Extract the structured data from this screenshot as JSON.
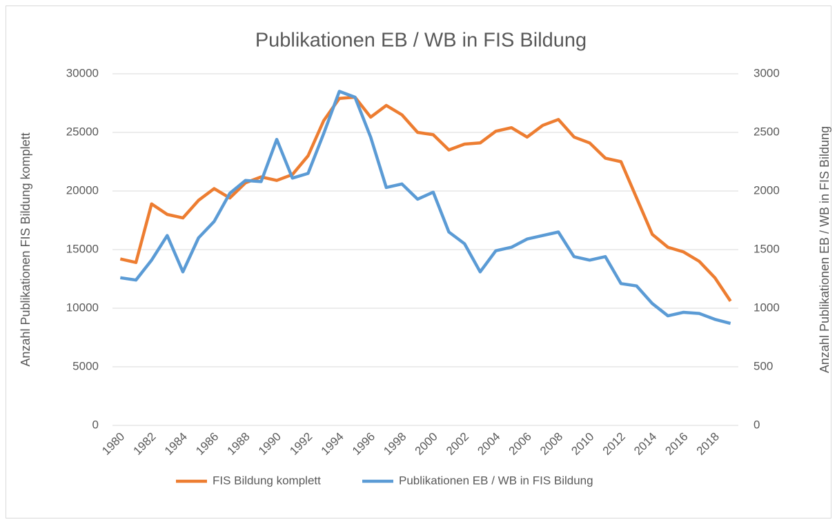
{
  "chart_data": {
    "type": "line",
    "title": "Publikationen EB / WB in FIS Bildung",
    "y_label": "Anzahl Publikationen FIS Bildung komplett",
    "y2_label": "Anzahl Publikationen EB / WB in FIS Bildung",
    "x": [
      1980,
      1981,
      1982,
      1983,
      1984,
      1985,
      1986,
      1987,
      1988,
      1989,
      1990,
      1991,
      1992,
      1993,
      1994,
      1995,
      1996,
      1997,
      1998,
      1999,
      2000,
      2001,
      2002,
      2003,
      2004,
      2005,
      2006,
      2007,
      2008,
      2009,
      2010,
      2011,
      2012,
      2013,
      2014,
      2015,
      2016,
      2017,
      2018,
      2019
    ],
    "xlim": [
      1979.5,
      2019.5
    ],
    "xticks": [
      1980,
      1982,
      1984,
      1986,
      1988,
      1990,
      1992,
      1994,
      1996,
      1998,
      2000,
      2002,
      2004,
      2006,
      2008,
      2010,
      2012,
      2014,
      2016,
      2018
    ],
    "ylim": [
      0,
      30000
    ],
    "yticks": [
      0,
      5000,
      10000,
      15000,
      20000,
      25000,
      30000
    ],
    "y2lim": [
      0,
      3000
    ],
    "y2ticks": [
      0,
      500,
      1000,
      1500,
      2000,
      2500,
      3000
    ],
    "grid": true,
    "legend": "bottom",
    "series": [
      {
        "name": "FIS Bildung komplett",
        "color": "#ed7d31",
        "values": [
          14200,
          13900,
          18900,
          18000,
          17700,
          19200,
          20200,
          19400,
          20700,
          21200,
          20900,
          21400,
          23000,
          26000,
          27900,
          28000,
          26300,
          27300,
          26500,
          25000,
          24800,
          23500,
          24000,
          24100,
          25100,
          25400,
          24600,
          25600,
          26100,
          24600,
          24100,
          22800,
          22500,
          19400,
          16300,
          15200,
          14800,
          14000,
          12600,
          10600
        ]
      },
      {
        "name": "Publikationen EB / WB in FIS Bildung",
        "color": "#5b9bd5",
        "axis": "y2",
        "values": [
          1260,
          1240,
          1410,
          1620,
          1310,
          1600,
          1740,
          1980,
          2090,
          2080,
          2440,
          2110,
          2150,
          2490,
          2850,
          2800,
          2460,
          2030,
          2060,
          1930,
          1990,
          1650,
          1550,
          1310,
          1490,
          1520,
          1590,
          1620,
          1650,
          1440,
          1410,
          1440,
          1210,
          1190,
          1040,
          935,
          965,
          955,
          905,
          870
        ]
      }
    ]
  }
}
